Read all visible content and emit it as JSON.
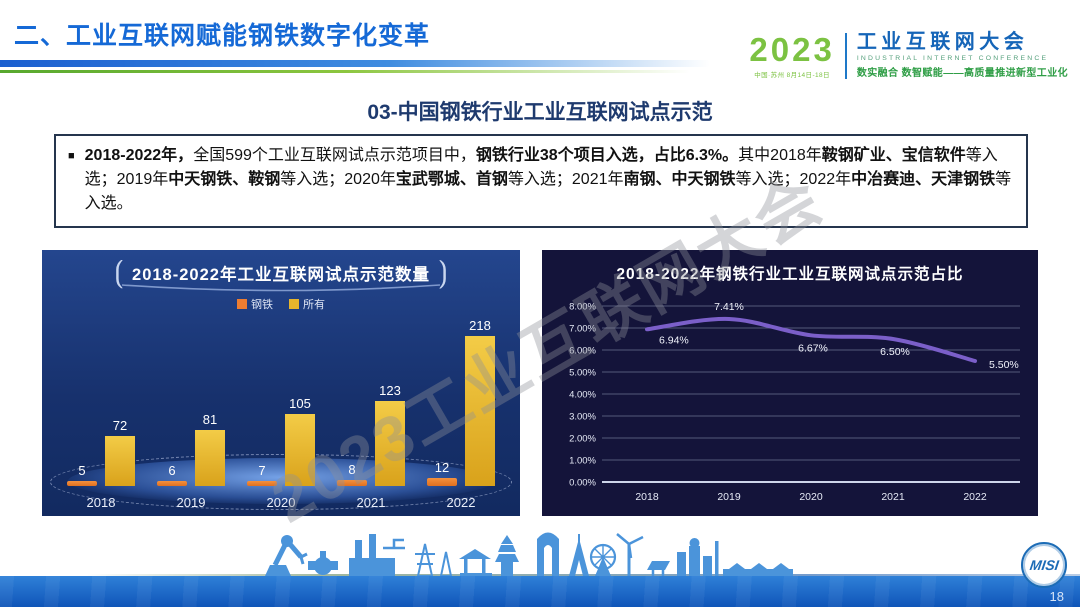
{
  "header": {
    "title": "二、工业互联网赋能钢铁数字化变革",
    "logo": {
      "year": "2023",
      "venue": "中国·苏州  8月14日-18日",
      "name_cn": "工业互联网大会",
      "name_en": "INDUSTRIAL INTERNET CONFERENCE",
      "slogan": "数实融合  数智赋能——高质量推进新型工业化"
    }
  },
  "subtitle": "03-中国钢铁行业工业互联网试点示范",
  "infobox": {
    "bullet": "■",
    "segments": [
      {
        "text": "2018-2022年，",
        "bold": true
      },
      {
        "text": "全国599个工业互联网试点示范项目中，",
        "bold": false
      },
      {
        "text": "钢铁行业38个项目入选，占比6.3%。",
        "bold": true
      },
      {
        "text": "其中2018年",
        "bold": false
      },
      {
        "text": "鞍钢矿业、宝信软件",
        "bold": true
      },
      {
        "text": "等入选；2019年",
        "bold": false
      },
      {
        "text": "中天钢铁、鞍钢",
        "bold": true
      },
      {
        "text": "等入选；2020年",
        "bold": false
      },
      {
        "text": "宝武鄂城、首钢",
        "bold": true
      },
      {
        "text": "等入选；2021年",
        "bold": false
      },
      {
        "text": "南钢、中天钢铁",
        "bold": true
      },
      {
        "text": "等入选；2022年",
        "bold": false
      },
      {
        "text": "中冶赛迪、天津钢铁",
        "bold": true
      },
      {
        "text": "等入选。",
        "bold": false
      }
    ]
  },
  "chart_data": [
    {
      "type": "bar",
      "title": "2018-2022年工业互联网试点示范数量",
      "categories": [
        "2018",
        "2019",
        "2020",
        "2021",
        "2022"
      ],
      "series": [
        {
          "name": "钢铁",
          "color": "#ed7d31",
          "values": [
            5,
            6,
            7,
            8,
            12
          ]
        },
        {
          "name": "所有",
          "color": "#e7b52c",
          "values": [
            72,
            81,
            105,
            123,
            218
          ]
        }
      ],
      "xlabel": "",
      "ylabel": "",
      "ylim": [
        0,
        240
      ],
      "grid": false,
      "legend_position": "top"
    },
    {
      "type": "line",
      "title": "2018-2022年钢铁行业工业互联网试点示范占比",
      "x": [
        "2018",
        "2019",
        "2020",
        "2021",
        "2022"
      ],
      "values": [
        6.94,
        7.41,
        6.67,
        6.5,
        5.5
      ],
      "labels": [
        "6.94%",
        "7.41%",
        "6.67%",
        "6.50%",
        "5.50%"
      ],
      "y_ticks": [
        "8.00%",
        "7.00%",
        "6.00%",
        "5.00%",
        "4.00%",
        "3.00%",
        "2.00%",
        "1.00%",
        "0.00%"
      ],
      "xlabel": "",
      "ylabel": "",
      "ylim": [
        0,
        8
      ],
      "line_color": "#7b5fc9",
      "grid": true,
      "legend_position": "none"
    }
  ],
  "watermark": "2023工业互联网大会",
  "footer": {
    "page_number": "18",
    "logo_text": "MISI"
  }
}
